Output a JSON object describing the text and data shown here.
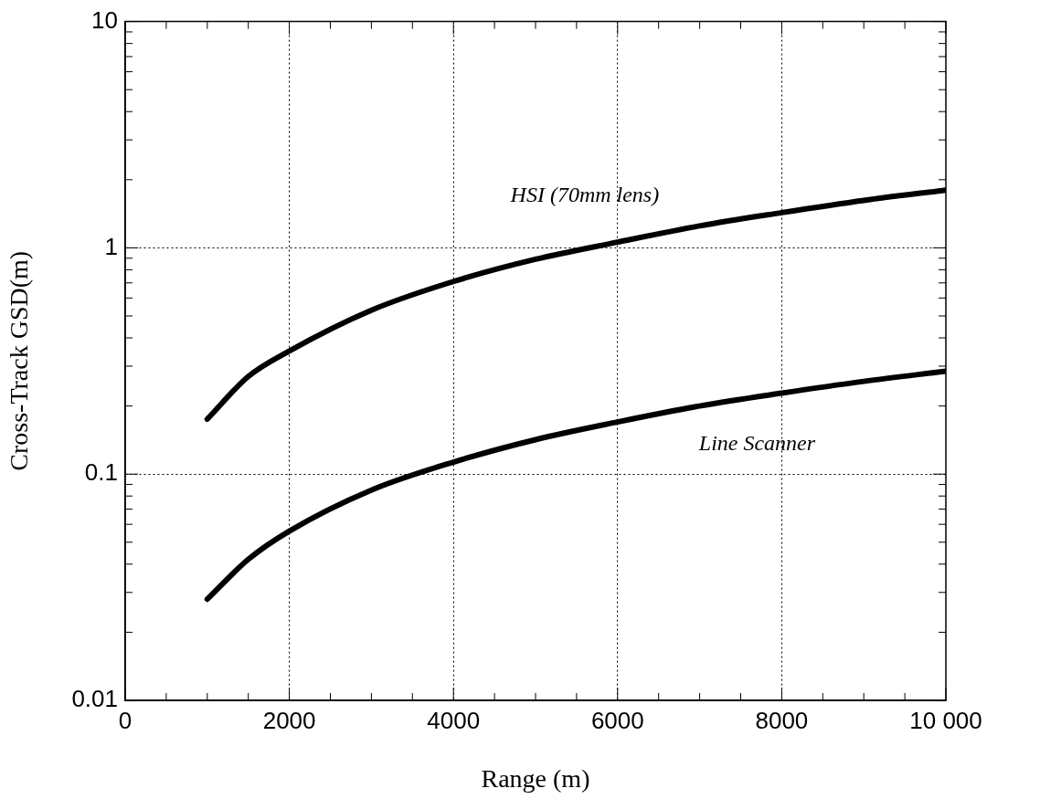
{
  "chart_data": {
    "type": "line",
    "xlabel": "Range (m)",
    "ylabel": "Cross-Track GSD(m)",
    "series": [
      {
        "name": "HSI (70mm lens)",
        "color": "#000000",
        "x": [
          1000,
          1500,
          2000,
          3000,
          4000,
          5000,
          6000,
          7000,
          8000,
          9000,
          10000
        ],
        "values": [
          0.175,
          0.27,
          0.35,
          0.53,
          0.71,
          0.89,
          1.06,
          1.25,
          1.43,
          1.62,
          1.8
        ]
      },
      {
        "name": "Line Scanner",
        "color": "#000000",
        "x": [
          1000,
          1500,
          2000,
          3000,
          4000,
          5000,
          6000,
          7000,
          8000,
          9000,
          10000
        ],
        "values": [
          0.028,
          0.042,
          0.056,
          0.085,
          0.113,
          0.142,
          0.17,
          0.2,
          0.228,
          0.257,
          0.285
        ]
      }
    ],
    "xlim": [
      0,
      10000
    ],
    "xticks": [
      0,
      {
        "value": 500,
        "label": null
      },
      {
        "value": 1000,
        "label": null
      },
      {
        "value": 1500,
        "label": null
      },
      2000,
      {
        "value": 2500,
        "label": null
      },
      {
        "value": 3000,
        "label": null
      },
      {
        "value": 3500,
        "label": null
      },
      4000,
      {
        "value": 4500,
        "label": null
      },
      {
        "value": 5000,
        "label": null
      },
      {
        "value": 5500,
        "label": null
      },
      6000,
      {
        "value": 6500,
        "label": null
      },
      {
        "value": 7000,
        "label": null
      },
      {
        "value": 7500,
        "label": null
      },
      8000,
      {
        "value": 8500,
        "label": null
      },
      {
        "value": 9000,
        "label": null
      },
      {
        "value": 9500,
        "label": null
      },
      {
        "value": 10000,
        "label": "10 000"
      }
    ],
    "ylim": [
      0.01,
      10
    ],
    "yticks": [
      0.01,
      {
        "value": 0.02,
        "label": null
      },
      {
        "value": 0.03,
        "label": null
      },
      {
        "value": 0.04,
        "label": null
      },
      {
        "value": 0.05,
        "label": null
      },
      {
        "value": 0.06,
        "label": null
      },
      {
        "value": 0.07,
        "label": null
      },
      {
        "value": 0.08,
        "label": null
      },
      {
        "value": 0.09,
        "label": null
      },
      0.1,
      {
        "value": 0.2,
        "label": null
      },
      {
        "value": 0.3,
        "label": null
      },
      {
        "value": 0.4,
        "label": null
      },
      {
        "value": 0.5,
        "label": null
      },
      {
        "value": 0.6,
        "label": null
      },
      {
        "value": 0.7,
        "label": null
      },
      {
        "value": 0.8,
        "label": null
      },
      {
        "value": 0.9,
        "label": null
      },
      1,
      {
        "value": 2,
        "label": null
      },
      {
        "value": 3,
        "label": null
      },
      {
        "value": 4,
        "label": null
      },
      {
        "value": 5,
        "label": null
      },
      {
        "value": 6,
        "label": null
      },
      {
        "value": 7,
        "label": null
      },
      {
        "value": 8,
        "label": null
      },
      {
        "value": 9,
        "label": null
      },
      10
    ],
    "log": "y",
    "grid": true,
    "legend": false,
    "marker": "none",
    "line_style": "solid"
  }
}
